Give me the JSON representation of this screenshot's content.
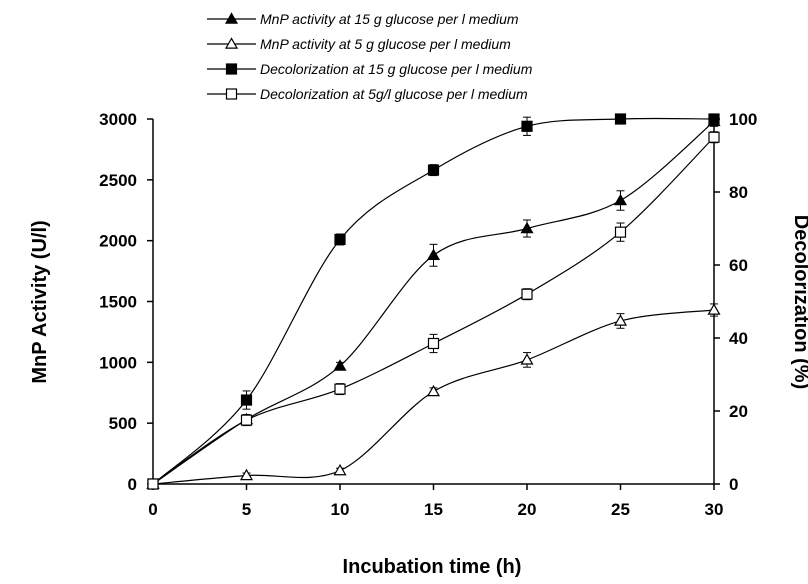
{
  "chart_data": {
    "type": "line",
    "title": "",
    "xlabel": "Incubation time (h)",
    "ylabel": "MnP Activity (U/l)",
    "y2label": "Decolorization (%)",
    "x": [
      0,
      5,
      10,
      15,
      20,
      25,
      30
    ],
    "xlim": [
      0,
      30
    ],
    "xticks": [
      "0",
      "5",
      "10",
      "15",
      "20",
      "25",
      "30"
    ],
    "ylim": [
      0,
      3000
    ],
    "yticks": [
      "0",
      "500",
      "1000",
      "1500",
      "2000",
      "2500",
      "3000"
    ],
    "y2lim": [
      0,
      100
    ],
    "y2ticks": [
      "0",
      "20",
      "40",
      "60",
      "80",
      "100"
    ],
    "grid": false,
    "legend_position": "top",
    "series": [
      {
        "name": "MnP activity at 15 g glucose per l medium",
        "axis": "left",
        "marker": "triangle-filled",
        "values": [
          0,
          530,
          970,
          1880,
          2100,
          2330,
          2980
        ],
        "errors": [
          20,
          40,
          30,
          90,
          70,
          80,
          40
        ]
      },
      {
        "name": "MnP activity at 5 g glucose per l medium",
        "axis": "left",
        "marker": "triangle-open",
        "values": [
          0,
          70,
          110,
          760,
          1020,
          1340,
          1430
        ],
        "errors": [
          10,
          20,
          20,
          30,
          60,
          60,
          50
        ]
      },
      {
        "name": "Decolorization at 15 g glucose per l medium",
        "axis": "right",
        "marker": "square-filled",
        "values": [
          0,
          23,
          67,
          86,
          98,
          100,
          100
        ],
        "errors": [
          0.5,
          2.5,
          1.5,
          1.5,
          2.5,
          0.5,
          0.5
        ]
      },
      {
        "name": "Decolorization at 5g/l glucose per l medium",
        "axis": "right",
        "marker": "square-open",
        "values": [
          0,
          17.5,
          26,
          38.5,
          52,
          69,
          95
        ],
        "errors": [
          0.5,
          1.5,
          1.5,
          2.5,
          1.5,
          2.5,
          1.5
        ]
      }
    ]
  }
}
